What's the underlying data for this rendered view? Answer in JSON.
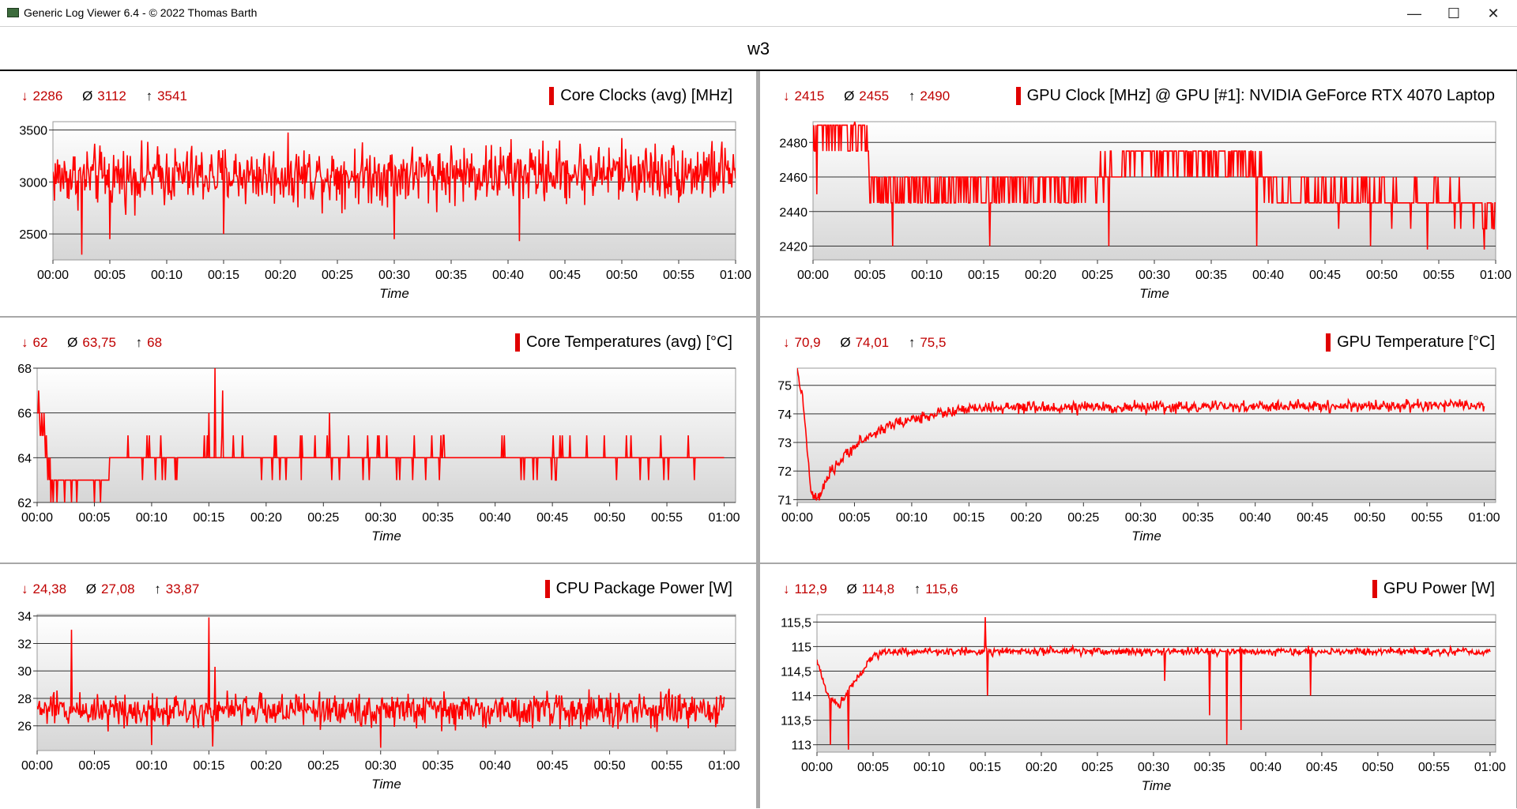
{
  "window": {
    "title": "Generic Log Viewer 6.4 - © 2022 Thomas Barth",
    "minimize": "—",
    "maximize": "☐",
    "close": "✕"
  },
  "document": {
    "title": "w3"
  },
  "colors": {
    "series": "#ff0000",
    "stat_text": "#c00000",
    "separator": "#a8a8a8"
  },
  "panels": [
    {
      "id": "core-clocks",
      "title": "Core Clocks (avg) [MHz]",
      "stats": {
        "min_symbol": "↓",
        "min": "2286",
        "avg_symbol": "Ø",
        "avg": "3112",
        "max_symbol": "↑",
        "max": "3541"
      },
      "chart_data": {
        "type": "line",
        "title": "Core Clocks (avg) [MHz]",
        "xlabel": "Time",
        "ylabel": "",
        "xlim": [
          0,
          60
        ],
        "ylim": [
          2250,
          3580
        ],
        "x_ticks": [
          "00:00",
          "00:05",
          "00:10",
          "00:15",
          "00:20",
          "00:25",
          "00:30",
          "00:35",
          "00:40",
          "00:45",
          "00:50",
          "00:55",
          "01:00"
        ],
        "y_ticks": [
          2500,
          3000,
          3500
        ],
        "y_tick_labels": [
          "2500",
          "3000",
          "3500"
        ],
        "grid": true,
        "series": [
          {
            "profile": [
              [
                0,
                3050
              ],
              [
                60,
                3100
              ]
            ],
            "noise": 280,
            "spikes": [
              [
                2.5,
                2300
              ],
              [
                5,
                2450
              ],
              [
                15,
                2500
              ],
              [
                30,
                2450
              ],
              [
                41,
                2430
              ]
            ]
          }
        ]
      }
    },
    {
      "id": "gpu-clock",
      "title": "GPU Clock [MHz] @ GPU [#1]: NVIDIA GeForce RTX 4070 Laptop",
      "stats": {
        "min_symbol": "↓",
        "min": "2415",
        "avg_symbol": "Ø",
        "avg": "2455",
        "max_symbol": "↑",
        "max": "2490"
      },
      "chart_data": {
        "type": "line",
        "title": "GPU Clock [MHz] @ GPU [#1]: NVIDIA GeForce RTX 4070 Laptop",
        "xlabel": "Time",
        "ylabel": "",
        "xlim": [
          0,
          60
        ],
        "ylim": [
          2412,
          2492
        ],
        "x_ticks": [
          "00:00",
          "00:05",
          "00:10",
          "00:15",
          "00:20",
          "00:25",
          "00:30",
          "00:35",
          "00:40",
          "00:45",
          "00:50",
          "00:55",
          "01:00"
        ],
        "y_ticks": [
          2420,
          2440,
          2460,
          2480
        ],
        "y_tick_labels": [
          "2420",
          "2440",
          "2460",
          "2480"
        ],
        "grid": true,
        "series": [
          {
            "profile": [
              [
                0,
                2485
              ],
              [
                4.8,
                2485
              ],
              [
                5,
                2452
              ],
              [
                24,
                2455
              ],
              [
                28,
                2470
              ],
              [
                38,
                2470
              ],
              [
                41,
                2450
              ],
              [
                55,
                2448
              ],
              [
                60,
                2440
              ]
            ],
            "noise": 10,
            "quantize": 15,
            "spikes": [
              [
                0.3,
                2450
              ],
              [
                7,
                2420
              ],
              [
                15.5,
                2420
              ],
              [
                26,
                2420
              ],
              [
                39,
                2420
              ],
              [
                49,
                2420
              ],
              [
                54,
                2418
              ],
              [
                59,
                2418
              ]
            ]
          }
        ]
      }
    },
    {
      "id": "core-temps",
      "title": "Core Temperatures (avg) [°C]",
      "stats": {
        "min_symbol": "↓",
        "min": "62",
        "avg_symbol": "Ø",
        "avg": "63,75",
        "max_symbol": "↑",
        "max": "68"
      },
      "chart_data": {
        "type": "line",
        "title": "Core Temperatures (avg) [°C]",
        "xlabel": "Time",
        "ylabel": "",
        "xlim": [
          0,
          61
        ],
        "ylim": [
          62,
          68
        ],
        "x_ticks": [
          "00:00",
          "00:05",
          "00:10",
          "00:15",
          "00:20",
          "00:25",
          "00:30",
          "00:35",
          "00:40",
          "00:45",
          "00:50",
          "00:55",
          "01:00"
        ],
        "y_ticks": [
          62,
          64,
          66,
          68
        ],
        "y_tick_labels": [
          "62",
          "64",
          "66",
          "68"
        ],
        "grid": true,
        "series": [
          {
            "profile": [
              [
                0,
                66
              ],
              [
                0.6,
                65
              ],
              [
                1,
                63
              ],
              [
                6,
                63
              ],
              [
                6.5,
                64
              ],
              [
                60,
                64
              ]
            ],
            "noise": 0.6,
            "quantize": 1,
            "spikes": [
              [
                15.5,
                68
              ],
              [
                16.2,
                67
              ],
              [
                15,
                66
              ],
              [
                25.5,
                66
              ],
              [
                1.2,
                62
              ],
              [
                3,
                62
              ],
              [
                5,
                62
              ]
            ]
          }
        ]
      }
    },
    {
      "id": "gpu-temp",
      "title": "GPU Temperature [°C]",
      "stats": {
        "min_symbol": "↓",
        "min": "70,9",
        "avg_symbol": "Ø",
        "avg": "74,01",
        "max_symbol": "↑",
        "max": "75,5"
      },
      "chart_data": {
        "type": "line",
        "title": "GPU Temperature [°C]",
        "xlabel": "Time",
        "ylabel": "",
        "xlim": [
          0,
          61
        ],
        "ylim": [
          70.9,
          75.6
        ],
        "x_ticks": [
          "00:00",
          "00:05",
          "00:10",
          "00:15",
          "00:20",
          "00:25",
          "00:30",
          "00:35",
          "00:40",
          "00:45",
          "00:50",
          "00:55",
          "01:00"
        ],
        "y_ticks": [
          71,
          72,
          73,
          74,
          75
        ],
        "y_tick_labels": [
          "71",
          "72",
          "73",
          "74",
          "75"
        ],
        "grid": true,
        "series": [
          {
            "profile": [
              [
                0,
                75.5
              ],
              [
                0.5,
                74.5
              ],
              [
                1.2,
                71.2
              ],
              [
                1.8,
                71.0
              ],
              [
                3,
                72
              ],
              [
                5,
                72.9
              ],
              [
                8,
                73.6
              ],
              [
                12,
                74.0
              ],
              [
                16,
                74.2
              ],
              [
                60,
                74.3
              ]
            ],
            "noise": 0.2,
            "spikes": []
          }
        ]
      }
    },
    {
      "id": "cpu-power",
      "title": "CPU Package Power [W]",
      "stats": {
        "min_symbol": "↓",
        "min": "24,38",
        "avg_symbol": "Ø",
        "avg": "27,08",
        "max_symbol": "↑",
        "max": "33,87"
      },
      "chart_data": {
        "type": "line",
        "title": "CPU Package Power [W]",
        "xlabel": "Time",
        "ylabel": "",
        "xlim": [
          0,
          61
        ],
        "ylim": [
          24.2,
          34.1
        ],
        "x_ticks": [
          "00:00",
          "00:05",
          "00:10",
          "00:15",
          "00:20",
          "00:25",
          "00:30",
          "00:35",
          "00:40",
          "00:45",
          "00:50",
          "00:55",
          "01:00"
        ],
        "y_ticks": [
          26,
          28,
          30,
          32,
          34
        ],
        "y_tick_labels": [
          "26",
          "28",
          "30",
          "32",
          "34"
        ],
        "grid": true,
        "series": [
          {
            "profile": [
              [
                0,
                27.2
              ],
              [
                60,
                27.1
              ]
            ],
            "noise": 1.2,
            "spikes": [
              [
                3,
                33
              ],
              [
                15,
                33.9
              ],
              [
                15.5,
                30.3
              ],
              [
                15.3,
                24.5
              ],
              [
                30,
                24.4
              ],
              [
                10,
                24.6
              ]
            ]
          }
        ]
      }
    },
    {
      "id": "gpu-power",
      "title": "GPU Power [W]",
      "stats": {
        "min_symbol": "↓",
        "min": "112,9",
        "avg_symbol": "Ø",
        "avg": "114,8",
        "max_symbol": "↑",
        "max": "115,6"
      },
      "chart_data": {
        "type": "line",
        "title": "GPU Power [W]",
        "xlabel": "Time",
        "ylabel": "",
        "xlim": [
          0,
          60.5
        ],
        "ylim": [
          112.85,
          115.65
        ],
        "x_ticks": [
          "00:00",
          "00:05",
          "00:10",
          "00:15",
          "00:20",
          "00:25",
          "00:30",
          "00:35",
          "00:40",
          "00:45",
          "00:50",
          "00:55",
          "01:00"
        ],
        "y_ticks": [
          113,
          113.5,
          114,
          114.5,
          115,
          115.5
        ],
        "y_tick_labels": [
          "113",
          "113,5",
          "114",
          "114,5",
          "115",
          "115,5"
        ],
        "grid": true,
        "series": [
          {
            "profile": [
              [
                0,
                114.7
              ],
              [
                1,
                114.0
              ],
              [
                2,
                113.8
              ],
              [
                3,
                114.2
              ],
              [
                5,
                114.8
              ],
              [
                6,
                114.9
              ],
              [
                60,
                114.9
              ]
            ],
            "noise": 0.08,
            "spikes": [
              [
                1.2,
                113.0
              ],
              [
                2.8,
                112.9
              ],
              [
                15,
                115.6
              ],
              [
                15.2,
                114.0
              ],
              [
                36.5,
                113.0
              ],
              [
                37.8,
                113.3
              ],
              [
                35,
                113.6
              ],
              [
                44,
                114.0
              ],
              [
                31,
                114.3
              ]
            ]
          }
        ]
      }
    }
  ]
}
